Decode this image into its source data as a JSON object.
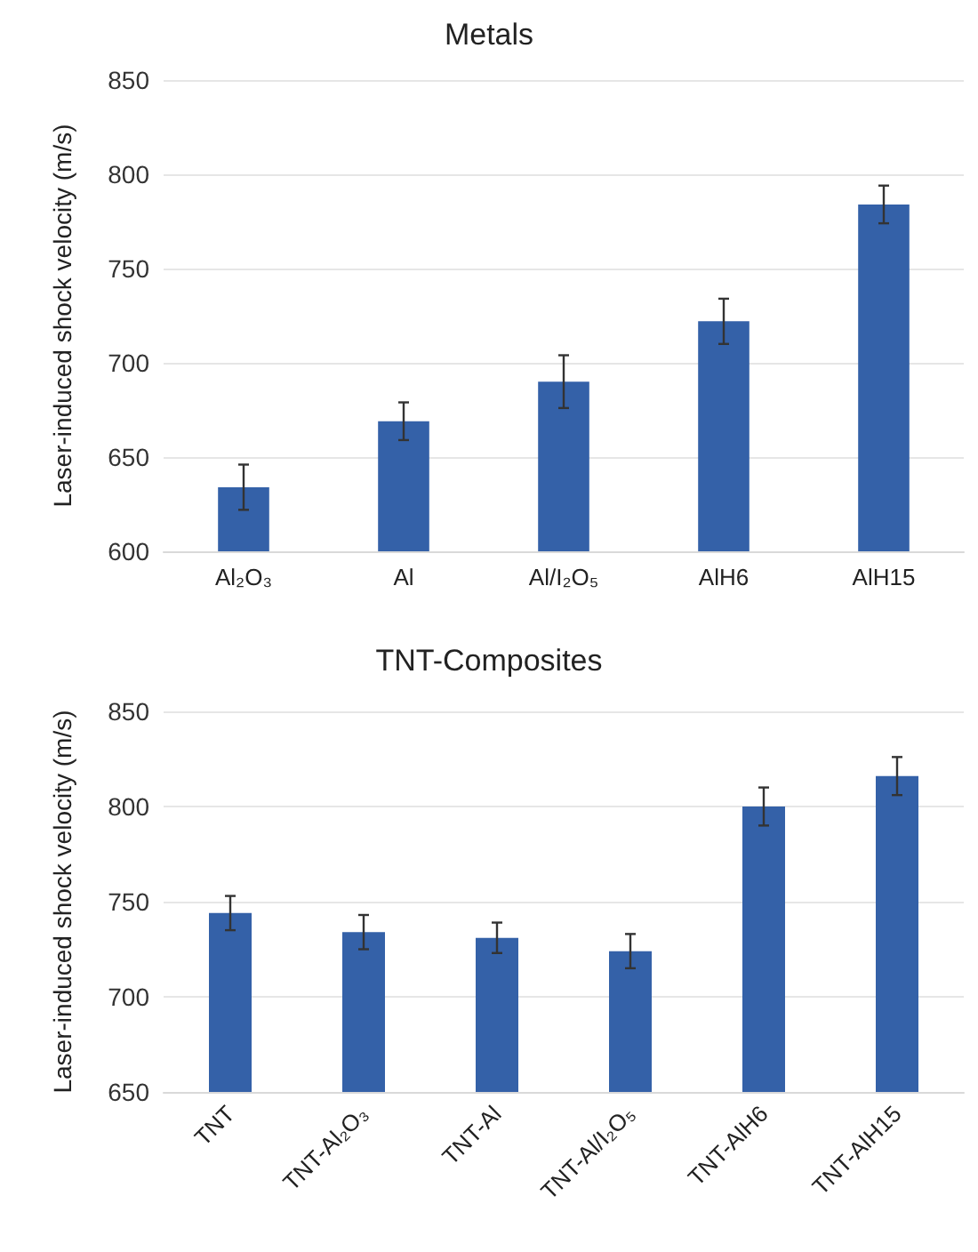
{
  "chart_data": [
    {
      "type": "bar",
      "title": "Metals",
      "ylabel": "Laser-induced shock velocity (m/s)",
      "categories": [
        "Al₂O₃",
        "Al",
        "Al/I₂O₅",
        "AlH6",
        "AlH15"
      ],
      "series": [
        {
          "color": "#3461a8",
          "values": [
            634,
            669,
            690,
            722,
            784
          ],
          "errors": [
            12,
            10,
            14,
            12,
            10
          ]
        }
      ],
      "ylim": [
        600,
        850
      ],
      "yticks": [
        600,
        650,
        700,
        750,
        800,
        850
      ],
      "grid": "y"
    },
    {
      "type": "bar",
      "title": "TNT-Composites",
      "ylabel": "Laser-induced shock velocity (m/s)",
      "categories": [
        "TNT",
        "TNT-Al₂O₃",
        "TNT-Al",
        "TNT-Al/I₂O₅",
        "TNT-AlH6",
        "TNT-AlH15"
      ],
      "series": [
        {
          "color": "#3461a8",
          "values": [
            744,
            734,
            731,
            724,
            800,
            816
          ],
          "errors": [
            9,
            9,
            8,
            9,
            10,
            10
          ]
        }
      ],
      "ylim": [
        650,
        850
      ],
      "yticks": [
        650,
        700,
        750,
        800,
        850
      ],
      "grid": "y"
    }
  ]
}
